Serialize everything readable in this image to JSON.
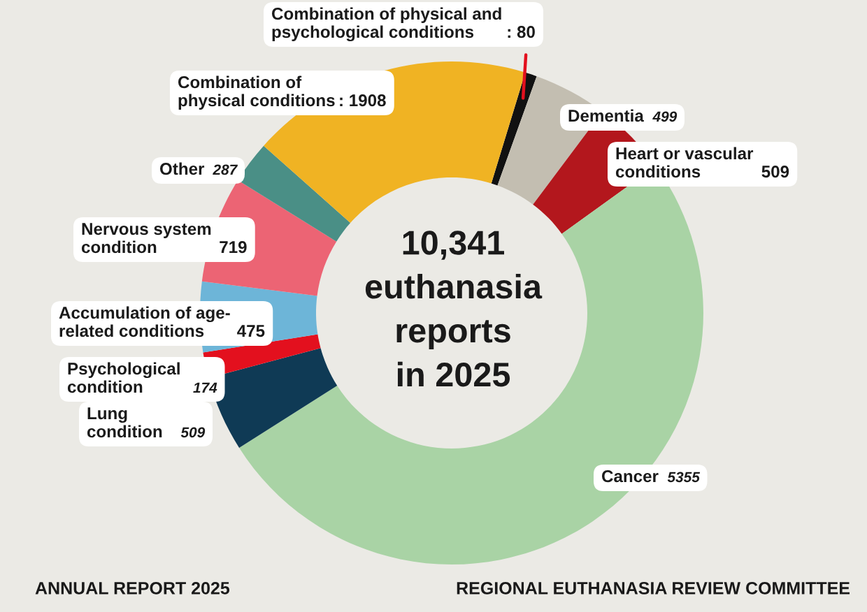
{
  "chart_data": {
    "type": "donut",
    "title": "10,341\neuthanasia\nreports\nin 2025",
    "categories": [
      "Combination of physical and\npsychological conditions",
      "Dementia",
      "Heart or vascular\nconditions",
      "Cancer",
      "Lung\ncondition",
      "Psychological\ncondition",
      "Accumulation of age-\nrelated conditions",
      "Nervous system\ncondition",
      "Other",
      "Combination of\nphysical conditions"
    ],
    "values": [
      80,
      499,
      509,
      5355,
      509,
      174,
      475,
      719,
      287,
      1908
    ],
    "value_labels": [
      ": 80",
      "499",
      "509",
      "5355",
      "509",
      "174",
      "475",
      "719",
      "287",
      ": 1908"
    ],
    "colors": [
      "#111111",
      "#c3beb1",
      "#b3171d",
      "#a9d3a5",
      "#0f3a55",
      "#e3101e",
      "#6db5d8",
      "#ec6474",
      "#4a8f86",
      "#f0b323"
    ],
    "annotations": [
      "ANNUAL REPORT 2025",
      "REGIONAL EUTHANASIA REVIEW COMMITTEE"
    ]
  }
}
